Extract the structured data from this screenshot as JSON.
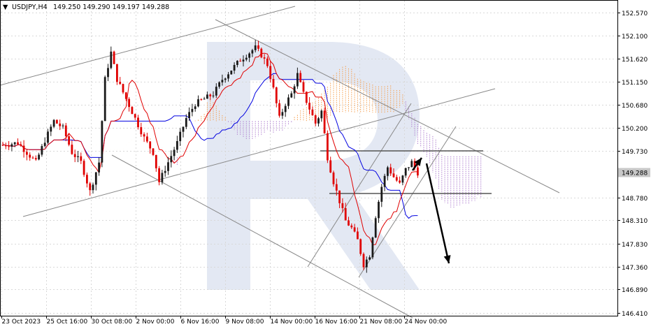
{
  "header": {
    "symbol": "USDJPY,H4",
    "ohlc": "149.250 149.290 149.197 149.288",
    "arrow_glyph": "▼"
  },
  "current_price_label": "149.288",
  "colors": {
    "up_candle": "#1a1a1a",
    "down_candle": "#e00000",
    "tenkan": "#e00000",
    "kijun": "#0000e0",
    "kumo_bull": "#f5a050",
    "kumo_bear": "#b080d0",
    "trend_lines": "#888888",
    "forecast_arrow": "#000000",
    "grid": "#d8d8d8",
    "price_tag_bg": "#c8c8c8",
    "watermark": "#e3e8f3"
  },
  "chart_data": {
    "type": "candlestick",
    "ylim": [
      146.41,
      152.8
    ],
    "yticks": [
      "152.570",
      "152.100",
      "151.620",
      "151.150",
      "150.680",
      "150.200",
      "149.730",
      "149.288",
      "148.780",
      "148.310",
      "147.830",
      "147.360",
      "146.890",
      "146.410"
    ],
    "xticks": [
      "23 Oct 2023",
      "25 Oct 16:00",
      "30 Oct 08:00",
      "2 Nov 00:00",
      "6 Nov 16:00",
      "9 Nov 08:00",
      "14 Nov 00:00",
      "16 Nov 16:00",
      "21 Nov 08:00",
      "24 Nov 00:00"
    ],
    "price_path": [
      [
        0,
        149.85
      ],
      [
        5,
        149.9
      ],
      [
        8,
        149.7
      ],
      [
        11,
        149.5
      ],
      [
        14,
        149.95
      ],
      [
        17,
        150.35
      ],
      [
        20,
        150.2
      ],
      [
        23,
        149.7
      ],
      [
        26,
        149.5
      ],
      [
        29,
        148.9
      ],
      [
        32,
        149.5
      ],
      [
        34,
        151.2
      ],
      [
        36,
        151.75
      ],
      [
        38,
        151.2
      ],
      [
        41,
        150.8
      ],
      [
        44,
        150.4
      ],
      [
        47,
        150.0
      ],
      [
        50,
        149.7
      ],
      [
        52,
        149.1
      ],
      [
        55,
        149.5
      ],
      [
        58,
        149.9
      ],
      [
        61,
        150.4
      ],
      [
        64,
        150.7
      ],
      [
        67,
        150.8
      ],
      [
        70,
        150.9
      ],
      [
        73,
        151.2
      ],
      [
        76,
        151.4
      ],
      [
        79,
        151.6
      ],
      [
        82,
        151.75
      ],
      [
        84,
        151.85
      ],
      [
        86,
        151.7
      ],
      [
        88,
        151.5
      ],
      [
        90,
        151.0
      ],
      [
        92,
        150.4
      ],
      [
        94,
        150.7
      ],
      [
        96,
        150.9
      ],
      [
        98,
        151.3
      ],
      [
        100,
        150.9
      ],
      [
        102,
        150.6
      ],
      [
        104,
        150.3
      ],
      [
        106,
        150.55
      ],
      [
        108,
        149.6
      ],
      [
        110,
        149.1
      ],
      [
        112,
        148.7
      ],
      [
        114,
        148.3
      ],
      [
        116,
        148.15
      ],
      [
        118,
        147.9
      ],
      [
        120,
        147.4
      ],
      [
        122,
        147.6
      ],
      [
        124,
        148.4
      ],
      [
        126,
        149.0
      ],
      [
        128,
        149.4
      ],
      [
        130,
        149.2
      ],
      [
        132,
        149.05
      ],
      [
        134,
        149.35
      ],
      [
        136,
        149.5
      ],
      [
        138,
        149.288
      ]
    ],
    "forecast": {
      "from": 149.45,
      "rebound_to": 149.65,
      "target": 147.45
    }
  }
}
